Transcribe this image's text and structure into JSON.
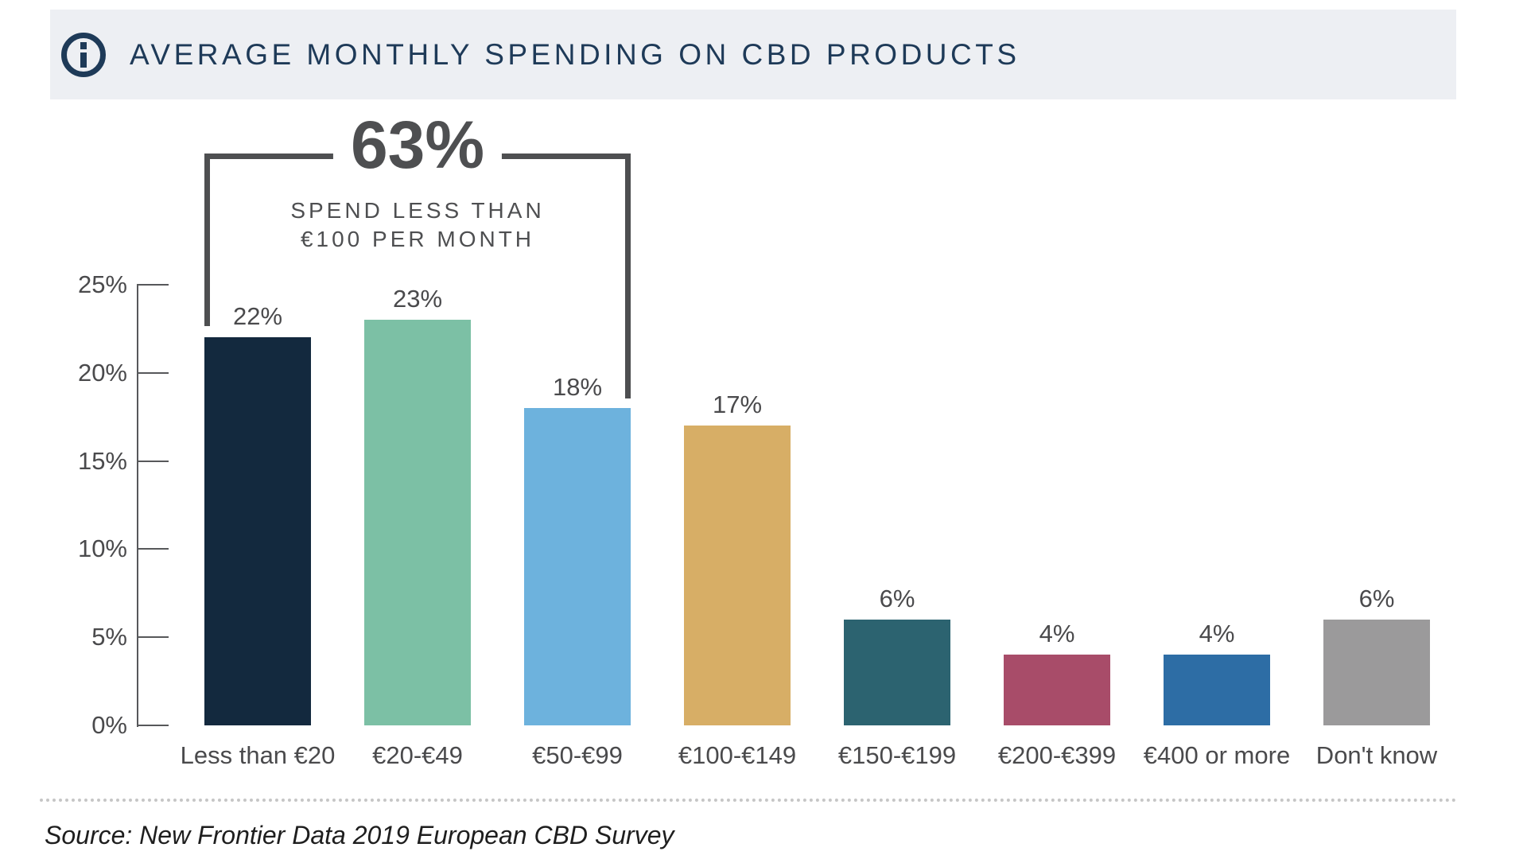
{
  "header": {
    "title": "AVERAGE MONTHLY SPENDING ON CBD PRODUCTS"
  },
  "annotation": {
    "value": "63%",
    "line1": "SPEND LESS THAN",
    "line2": "€100 PER MONTH"
  },
  "chart_data": {
    "type": "bar",
    "title": "Average Monthly Spending on CBD Products",
    "categories": [
      "Less than €20",
      "€20-€49",
      "€50-€99",
      "€100-€149",
      "€150-€199",
      "€200-€399",
      "€400 or more",
      "Don't know"
    ],
    "values": [
      22,
      23,
      18,
      17,
      6,
      4,
      4,
      6
    ],
    "value_labels": [
      "22%",
      "23%",
      "18%",
      "17%",
      "6%",
      "4%",
      "4%",
      "6%"
    ],
    "colors": [
      "#13293E",
      "#7CC0A5",
      "#6DB2DD",
      "#D7AE66",
      "#2C6370",
      "#A84C69",
      "#2D6DA5",
      "#9B9A9B"
    ],
    "xlabel": "",
    "ylabel": "",
    "ylim": [
      0,
      25
    ],
    "yticks": [
      25,
      20,
      15,
      10,
      5,
      0
    ],
    "ytick_labels": [
      "25%",
      "20%",
      "15%",
      "10%",
      "5%",
      "0%"
    ],
    "grid": false,
    "legend": "none",
    "annotation": {
      "value": "63%",
      "label": "SPEND LESS THAN €100 PER MONTH",
      "covers": [
        "Less than €20",
        "€20-€49",
        "€50-€99"
      ]
    }
  },
  "footer": {
    "source": "Source: New Frontier Data 2019 European CBD Survey"
  },
  "ui_colors": {
    "header_background": "#EDEFF3",
    "header_text": "#1E3A58",
    "bracket": "#4E4F51",
    "axis": "#57585A",
    "labels": "#4A4A4C"
  }
}
